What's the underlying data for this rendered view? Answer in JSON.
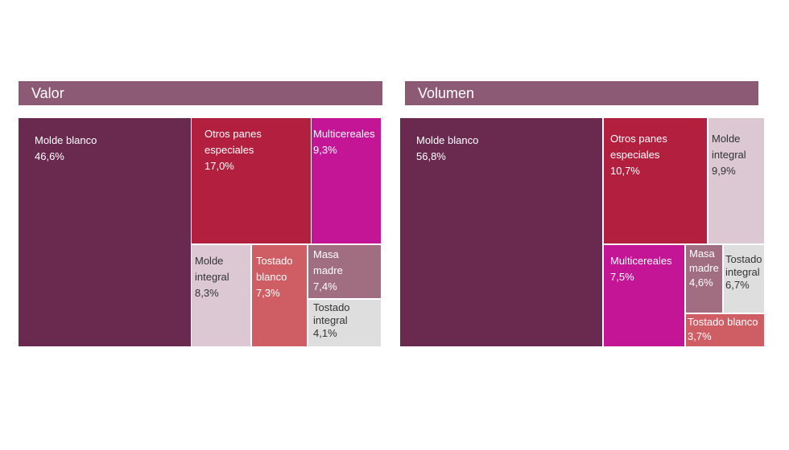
{
  "chart_data": [
    {
      "type": "treemap",
      "title": "Valor",
      "items": [
        {
          "label": "Molde blanco",
          "value": "46,6%",
          "color": "#6a2a50"
        },
        {
          "label": "Otros panes\nespeciales",
          "value": "17,0%",
          "color": "#b3203f"
        },
        {
          "label": "Multicereales",
          "value": "9,3%",
          "color": "#c41596"
        },
        {
          "label": "Molde\nintegral",
          "value": "8,3%",
          "color": "#dbc8d3"
        },
        {
          "label": "Tostado\nblanco",
          "value": "7,3%",
          "color": "#cf5e64"
        },
        {
          "label": "Masa\nmadre",
          "value": "7,4%",
          "color": "#a06d81"
        },
        {
          "label": "Tostado\nintegral",
          "value": "4,1%",
          "color": "#dedede"
        }
      ]
    },
    {
      "type": "treemap",
      "title": "Volumen",
      "items": [
        {
          "label": "Molde blanco",
          "value": "56,8%",
          "color": "#6a2a50"
        },
        {
          "label": "Otros panes\nespeciales",
          "value": "10,7%",
          "color": "#b3203f"
        },
        {
          "label": "Molde\nintegral",
          "value": "9,9%",
          "color": "#dbc8d3"
        },
        {
          "label": "Multicereales",
          "value": "7,5%",
          "color": "#c41596"
        },
        {
          "label": "Masa\nmadre",
          "value": "4,6%",
          "color": "#a06d81"
        },
        {
          "label": "Tostado\nintegral",
          "value": "6,7%",
          "color": "#dedede"
        },
        {
          "label": "Tostado blanco",
          "value": "3,7%",
          "color": "#cf5e64"
        }
      ]
    }
  ]
}
